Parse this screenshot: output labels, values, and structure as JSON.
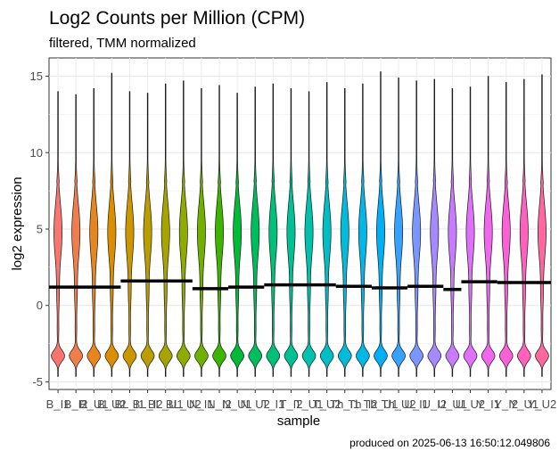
{
  "chart_data": {
    "type": "violin",
    "title": "Log2 Counts per Million (CPM)",
    "subtitle": "filtered, TMM normalized",
    "xlabel": "sample",
    "ylabel": "log2 expression",
    "caption": "produced on 2025-06-13 16:50:12.049806",
    "ylim": [
      -5.5,
      16.2
    ],
    "yticks": [
      -5,
      0,
      5,
      10,
      15
    ],
    "grid": true,
    "legend": "none",
    "categories": [
      "B_I1",
      "B_I2",
      "B_U1",
      "B_U2",
      "BL_I1",
      "BL_I2",
      "BL_U1",
      "BL_U2",
      "N_I1",
      "N_I2",
      "N_U1",
      "N_U2",
      "T_I1",
      "T_I2",
      "T_U1",
      "T_U2",
      "Th_I1",
      "Th_I2",
      "Th_U1",
      "Th_U2",
      "U_I1",
      "U_I2",
      "U_U1",
      "U_U2",
      "Y_I1",
      "Y_I2",
      "Y_U1",
      "Y_U2"
    ],
    "tick_labels": [
      "B_I1",
      "B_I2",
      "B_U1",
      "B_U2",
      "BL_I1",
      "BL_I2",
      "BL_U1",
      "BL_U2",
      "N_I1",
      "N_I2",
      "N_U1",
      "N_U2",
      "T_I1",
      "T_I2",
      "T_U1",
      "T_U2",
      "Th_I1",
      "Th_I2",
      "Th_U1",
      "Th_U2",
      "U_I1",
      "U_I2",
      "U_U1",
      "U_U2",
      "Y_I1",
      "Y_I2",
      "Y_U1",
      "Y_U2"
    ],
    "max_values": [
      14.0,
      13.8,
      14.2,
      15.2,
      14.0,
      13.9,
      14.5,
      14.7,
      14.2,
      14.4,
      13.9,
      14.3,
      14.5,
      14.2,
      14.0,
      14.6,
      14.2,
      14.5,
      15.3,
      14.9,
      14.7,
      14.8,
      14.2,
      14.3,
      15.0,
      14.6,
      14.8,
      15.1
    ],
    "mode_values": [
      -3.3,
      -3.3,
      -3.3,
      -3.3,
      -3.3,
      -3.3,
      -3.3,
      -3.3,
      -3.3,
      -3.3,
      -3.3,
      -3.3,
      -3.3,
      -3.3,
      -3.3,
      -3.3,
      -3.3,
      -3.3,
      -3.3,
      -3.3,
      -3.3,
      -3.3,
      -3.3,
      -3.3,
      -3.3,
      -3.3,
      -3.3,
      -3.3
    ],
    "median_segments": [
      {
        "from": "B_I1",
        "to": "B_U2",
        "value": 1.2
      },
      {
        "from": "BL_I1",
        "to": "BL_U2",
        "value": 1.6
      },
      {
        "from": "N_I1",
        "to": "N_I2",
        "value": 1.1
      },
      {
        "from": "N_U1",
        "to": "N_U2",
        "value": 1.2
      },
      {
        "from": "T_I1",
        "to": "T_U2",
        "value": 1.35
      },
      {
        "from": "Th_I1",
        "to": "Th_I2",
        "value": 1.25
      },
      {
        "from": "Th_U1",
        "to": "Th_U2",
        "value": 1.15
      },
      {
        "from": "U_I1",
        "to": "U_I2",
        "value": 1.25
      },
      {
        "from": "U_U1",
        "to": "U_U1",
        "value": 1.05
      },
      {
        "from": "U_U2",
        "to": "Y_I1",
        "value": 1.55
      },
      {
        "from": "Y_I2",
        "to": "Y_U2",
        "value": 1.5
      }
    ],
    "colors": [
      "#F8766D",
      "#F07E4D",
      "#E7851E",
      "#DB8E00",
      "#CC9600",
      "#BB9D00",
      "#A7A300",
      "#8EAB00",
      "#6FB000",
      "#3DB500",
      "#00BA38",
      "#00BD5C",
      "#00C07A",
      "#00C094",
      "#00C1AB",
      "#00BFC4",
      "#00BCD8",
      "#00B8E7",
      "#00B0F6",
      "#35A2FF",
      "#7997FF",
      "#A58AFF",
      "#C77CFF",
      "#DE70F9",
      "#EF67EB",
      "#FB61D7",
      "#FF62BC",
      "#FF689F"
    ]
  }
}
